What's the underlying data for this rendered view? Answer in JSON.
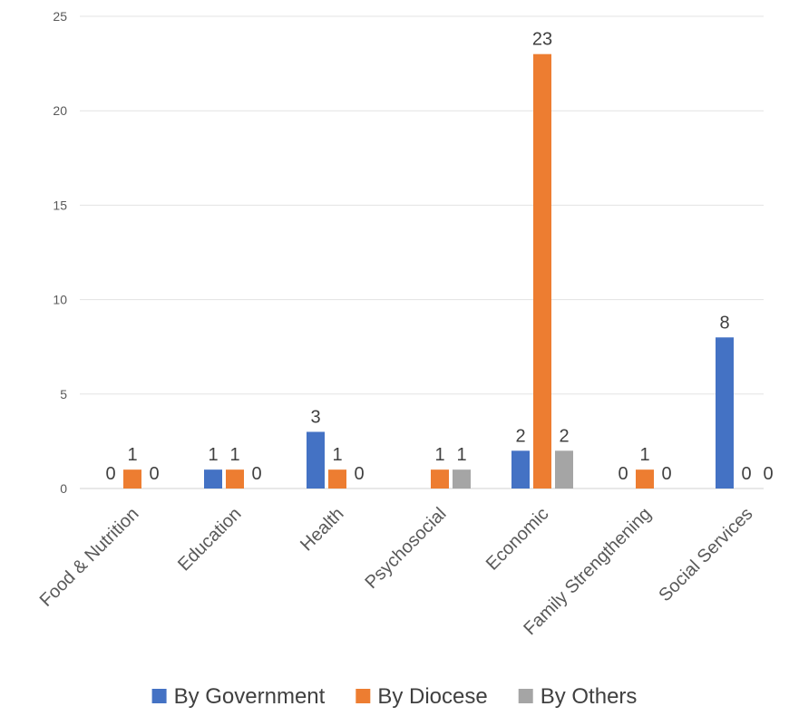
{
  "chart_data": {
    "type": "bar",
    "categories": [
      "Food & Nutrition",
      "Education",
      "Health",
      "Psychosocial",
      "Economic",
      "Family Strengthening",
      "Social Services"
    ],
    "series": [
      {
        "name": "By Government",
        "color": "#4472C4",
        "values": [
          0,
          1,
          3,
          null,
          2,
          0,
          8
        ],
        "labels": [
          "0",
          "1",
          "3",
          "",
          "2",
          "0",
          "8"
        ]
      },
      {
        "name": "By Diocese",
        "color": "#ED7D31",
        "values": [
          1,
          1,
          1,
          1,
          23,
          1,
          0
        ],
        "labels": [
          "1",
          "1",
          "1",
          "1",
          "23",
          "1",
          "0"
        ]
      },
      {
        "name": "By Others",
        "color": "#A5A5A5",
        "values": [
          0,
          0,
          0,
          1,
          2,
          0,
          0
        ],
        "labels": [
          "0",
          "0",
          "0",
          "1",
          "2",
          "0",
          "0"
        ]
      }
    ],
    "yticks": [
      "0",
      "5",
      "10",
      "15",
      "20",
      "25"
    ],
    "ylim": [
      0,
      25
    ],
    "grid": true,
    "legend": "bottom"
  }
}
